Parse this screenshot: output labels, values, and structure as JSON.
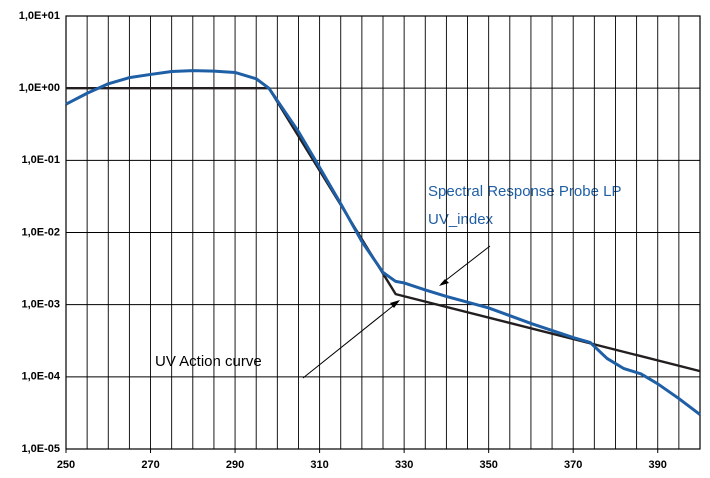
{
  "chart_data": {
    "type": "line",
    "log_y": true,
    "grid": true,
    "xlim": [
      250,
      400
    ],
    "xticks": [
      250,
      270,
      290,
      310,
      330,
      350,
      370,
      390
    ],
    "xgrid": [
      250,
      255,
      260,
      265,
      270,
      275,
      280,
      285,
      290,
      295,
      300,
      305,
      310,
      315,
      320,
      325,
      330,
      335,
      340,
      345,
      350,
      355,
      360,
      365,
      370,
      375,
      380,
      385,
      390,
      395,
      400
    ],
    "ylim": [
      1e-05,
      10
    ],
    "yticks": [
      {
        "value": 1e-05,
        "label": "1,0E-05"
      },
      {
        "value": 0.0001,
        "label": "1,0E-04"
      },
      {
        "value": 0.001,
        "label": "1,0E-03"
      },
      {
        "value": 0.01,
        "label": "1,0E-02"
      },
      {
        "value": 0.1,
        "label": "1,0E-01"
      },
      {
        "value": 1,
        "label": "1,0E+00"
      },
      {
        "value": 10,
        "label": "1,0E+01"
      }
    ],
    "series": [
      {
        "name": "UV Action curve",
        "color": "#231f20",
        "x": [
          250,
          298,
          328,
          400
        ],
        "values": [
          1,
          1,
          0.0014,
          0.00012
        ]
      },
      {
        "name": "Spectral Response Probe LP",
        "color": "#1f5fa6",
        "x": [
          250,
          255,
          260,
          265,
          270,
          275,
          280,
          285,
          290,
          295,
          298,
          305,
          310,
          315,
          320,
          325,
          328,
          330,
          335,
          340,
          350,
          360,
          370,
          374,
          378,
          382,
          386,
          390,
          395,
          400
        ],
        "values": [
          0.6,
          0.85,
          1.15,
          1.4,
          1.55,
          1.7,
          1.75,
          1.72,
          1.65,
          1.35,
          1.0,
          0.25,
          0.08,
          0.025,
          0.0075,
          0.0028,
          0.0021,
          0.002,
          0.0016,
          0.0013,
          0.0009,
          0.00055,
          0.00035,
          0.0003,
          0.00018,
          0.00013,
          0.00011,
          8e-05,
          5e-05,
          3e-05
        ]
      }
    ],
    "annotation": "UV_index"
  }
}
